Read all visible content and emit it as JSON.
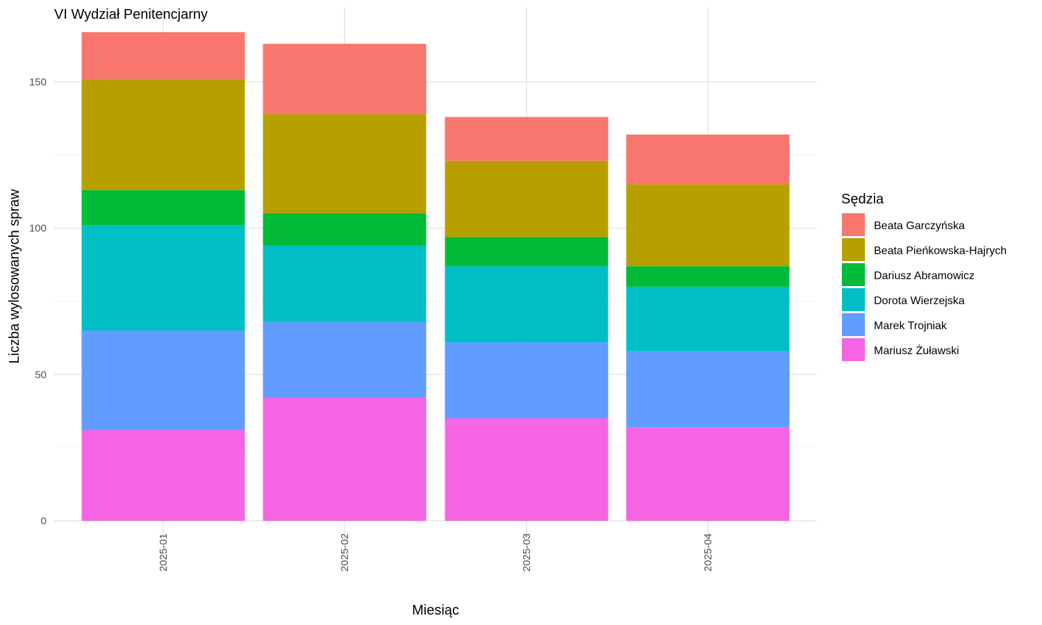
{
  "chart_data": {
    "type": "bar",
    "stacked": true,
    "title": "VI Wydział Penitencjarny",
    "xlabel": "Miesiąc",
    "ylabel": "Liczba wylosowanych spraw",
    "ylim": [
      0,
      167
    ],
    "yticks": [
      0,
      50,
      100,
      150
    ],
    "grid": true,
    "legend": {
      "title": "Sędzia",
      "position": "right"
    },
    "categories": [
      "2025-01",
      "2025-02",
      "2025-03",
      "2025-04"
    ],
    "series": [
      {
        "name": "Mariusz Żuławski",
        "color": "#F564E3",
        "values": [
          31,
          42,
          35,
          32
        ]
      },
      {
        "name": "Marek Trojniak",
        "color": "#619CFF",
        "values": [
          34,
          26,
          26,
          26
        ]
      },
      {
        "name": "Dorota Wierzejska",
        "color": "#00BFC4",
        "values": [
          36,
          26,
          26,
          22
        ]
      },
      {
        "name": "Dariusz Abramowicz",
        "color": "#00BA38",
        "values": [
          12,
          11,
          10,
          7
        ]
      },
      {
        "name": "Beata Pieńkowska-Hajrych",
        "color": "#B79F00",
        "values": [
          38,
          34,
          26,
          28
        ]
      },
      {
        "name": "Beata Garczyńska",
        "color": "#F8766D",
        "values": [
          16,
          24,
          15,
          17
        ]
      }
    ],
    "legend_order": [
      "Beata Garczyńska",
      "Beata Pieńkowska-Hajrych",
      "Dariusz Abramowicz",
      "Dorota Wierzejska",
      "Marek Trojniak",
      "Mariusz Żuławski"
    ]
  }
}
